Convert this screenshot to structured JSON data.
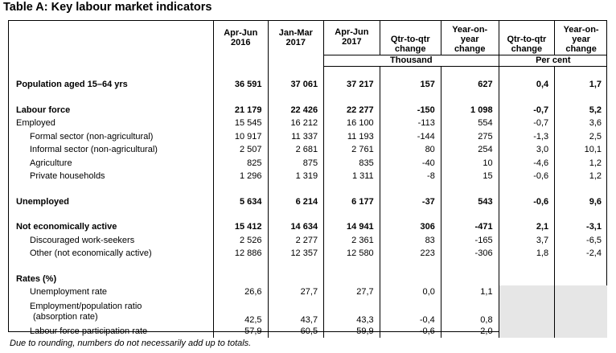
{
  "title": "Table A: Key labour market indicators",
  "headers": {
    "c1": [
      "Apr-Jun",
      "2016"
    ],
    "c2": [
      "Jan-Mar",
      "2017"
    ],
    "c3": [
      "Apr-Jun",
      "2017"
    ],
    "c4": [
      "Qtr-to-qtr",
      "change"
    ],
    "c5": [
      "Year-on-",
      "year",
      "change"
    ],
    "c6": [
      "Qtr-to-qtr",
      "change"
    ],
    "c7": [
      "Year-on-",
      "year",
      "change"
    ]
  },
  "units": {
    "thousand": "Thousand",
    "per_cent": "Per cent"
  },
  "rows": [
    {
      "label": "Population aged 15–64 yrs",
      "v": [
        "36 591",
        "37 061",
        "37 217",
        "157",
        "627",
        "0,4",
        "1,7"
      ]
    },
    {
      "label": "Labour force",
      "v": [
        "21 179",
        "22 426",
        "22 277",
        "-150",
        "1 098",
        "-0,7",
        "5,2"
      ]
    },
    {
      "label": "Employed",
      "v": [
        "15 545",
        "16 212",
        "16 100",
        "-113",
        "554",
        "-0,7",
        "3,6"
      ]
    },
    {
      "label": "Formal sector (non-agricultural)",
      "v": [
        "10 917",
        "11 337",
        "11 193",
        "-144",
        "275",
        "-1,3",
        "2,5"
      ]
    },
    {
      "label": "Informal sector (non-agricultural)",
      "v": [
        "2 507",
        "2 681",
        "2 761",
        "80",
        "254",
        "3,0",
        "10,1"
      ]
    },
    {
      "label": "Agriculture",
      "v": [
        "825",
        "875",
        "835",
        "-40",
        "10",
        "-4,6",
        "1,2"
      ]
    },
    {
      "label": "Private households",
      "v": [
        "1 296",
        "1 319",
        "1 311",
        "-8",
        "15",
        "-0,6",
        "1,2"
      ]
    },
    {
      "label": "Unemployed",
      "v": [
        "5 634",
        "6 214",
        "6 177",
        "-37",
        "543",
        "-0,6",
        "9,6"
      ]
    },
    {
      "label": "Not economically active",
      "v": [
        "15 412",
        "14 634",
        "14 941",
        "306",
        "-471",
        "2,1",
        "-3,1"
      ]
    },
    {
      "label": "Discouraged work-seekers",
      "v": [
        "2 526",
        "2 277",
        "2 361",
        "83",
        "-165",
        "3,7",
        "-6,5"
      ]
    },
    {
      "label": "Other (not economically active)",
      "v": [
        "12 886",
        "12 357",
        "12 580",
        "223",
        "-306",
        "1,8",
        "-2,4"
      ]
    },
    {
      "label": "Rates (%)"
    },
    {
      "label": "Unemployment rate",
      "v": [
        "26,6",
        "27,7",
        "27,7",
        "0,0",
        "1,1"
      ]
    },
    {
      "label": [
        "Employment/population ratio",
        "(absorption rate)"
      ],
      "v": [
        "42,5",
        "43,7",
        "43,3",
        "-0,4",
        "0,8"
      ]
    },
    {
      "label": "Labour force participation rate",
      "v": [
        "57,9",
        "60,5",
        "59,9",
        "-0,6",
        "2,0"
      ]
    }
  ],
  "footnote": "Due to rounding, numbers do not necessarily add up to totals."
}
